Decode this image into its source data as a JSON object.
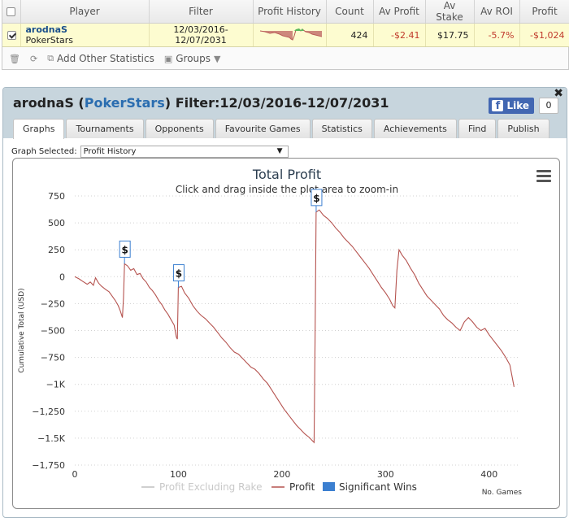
{
  "stats": {
    "headers": {
      "player": "Player",
      "filter": "Filter",
      "profit_history": "Profit History",
      "count": "Count",
      "av_profit": "Av Profit",
      "av_stake": "Av Stake",
      "av_roi": "Av ROI",
      "profit": "Profit"
    },
    "row": {
      "player_name": "arodnaS",
      "player_site": "PokerStars",
      "filter_line1": "12/03/2016-",
      "filter_line2": "12/07/2031",
      "count": "424",
      "av_profit": "-$2.41",
      "av_stake": "$17.75",
      "av_roi": "-5.7%",
      "profit": "-$1,024"
    },
    "toolbar": {
      "add_other": "Add Other Statistics",
      "groups": "Groups"
    }
  },
  "panel": {
    "title_player": "arodnaS",
    "title_site": "PokerStars",
    "title_filter": "Filter:12/03/2016-12/07/2031",
    "fb_like": "Like",
    "fb_count": "0",
    "tabs": [
      {
        "label": "Graphs"
      },
      {
        "label": "Tournaments"
      },
      {
        "label": "Opponents"
      },
      {
        "label": "Favourite Games"
      },
      {
        "label": "Statistics"
      },
      {
        "label": "Achievements"
      },
      {
        "label": "Find"
      },
      {
        "label": "Publish"
      }
    ],
    "graph_selected_label": "Graph Selected:",
    "graph_selected_value": "Profit History"
  },
  "chart_data": {
    "type": "line",
    "title": "Total Profit",
    "subtitle": "Click and drag inside the plot area to zoom-in",
    "ylabel": "Cumulative Total (USD)",
    "xlabel": "No. Games",
    "ylim": [
      -1750,
      750
    ],
    "xlim": [
      0,
      430
    ],
    "x_ticks": [
      0,
      100,
      200,
      300,
      400
    ],
    "x_tick_labels": [
      "0",
      "100",
      "200",
      "300",
      "400"
    ],
    "y_ticks": [
      750,
      500,
      250,
      0,
      -250,
      -500,
      -750,
      -1000,
      -1250,
      -1500,
      -1750
    ],
    "y_tick_labels": [
      "750",
      "500",
      "250",
      "0",
      "−250",
      "−500",
      "−750",
      "−1K",
      "−1,250",
      "−1.5K",
      "−1,750"
    ],
    "legend": [
      "Profit Excluding Rake",
      "Profit",
      "Significant Wins"
    ],
    "legend_placement": "bottom",
    "line_color": "#b5534f",
    "marker_color": "#3b7fd0",
    "series": [
      {
        "name": "Profit",
        "points": [
          [
            0,
            0
          ],
          [
            4,
            -20
          ],
          [
            8,
            -45
          ],
          [
            12,
            -70
          ],
          [
            15,
            -50
          ],
          [
            18,
            -80
          ],
          [
            20,
            -10
          ],
          [
            23,
            -60
          ],
          [
            26,
            -90
          ],
          [
            30,
            -120
          ],
          [
            33,
            -140
          ],
          [
            36,
            -180
          ],
          [
            39,
            -220
          ],
          [
            42,
            -270
          ],
          [
            44,
            -320
          ],
          [
            46,
            -380
          ],
          [
            47,
            -200
          ],
          [
            48,
            120
          ],
          [
            51,
            100
          ],
          [
            54,
            60
          ],
          [
            57,
            75
          ],
          [
            60,
            20
          ],
          [
            63,
            30
          ],
          [
            66,
            -20
          ],
          [
            69,
            -50
          ],
          [
            72,
            -100
          ],
          [
            75,
            -130
          ],
          [
            78,
            -170
          ],
          [
            81,
            -220
          ],
          [
            84,
            -260
          ],
          [
            87,
            -310
          ],
          [
            90,
            -350
          ],
          [
            93,
            -400
          ],
          [
            96,
            -450
          ],
          [
            98,
            -560
          ],
          [
            99,
            -580
          ],
          [
            100,
            -100
          ],
          [
            103,
            -90
          ],
          [
            106,
            -150
          ],
          [
            110,
            -200
          ],
          [
            114,
            -270
          ],
          [
            118,
            -320
          ],
          [
            122,
            -360
          ],
          [
            126,
            -390
          ],
          [
            130,
            -430
          ],
          [
            134,
            -470
          ],
          [
            138,
            -520
          ],
          [
            142,
            -570
          ],
          [
            146,
            -610
          ],
          [
            150,
            -660
          ],
          [
            154,
            -700
          ],
          [
            158,
            -720
          ],
          [
            162,
            -760
          ],
          [
            166,
            -800
          ],
          [
            170,
            -840
          ],
          [
            174,
            -860
          ],
          [
            178,
            -900
          ],
          [
            182,
            -950
          ],
          [
            186,
            -990
          ],
          [
            190,
            -1050
          ],
          [
            194,
            -1110
          ],
          [
            198,
            -1170
          ],
          [
            202,
            -1230
          ],
          [
            206,
            -1280
          ],
          [
            210,
            -1330
          ],
          [
            214,
            -1380
          ],
          [
            218,
            -1420
          ],
          [
            222,
            -1460
          ],
          [
            226,
            -1490
          ],
          [
            230,
            -1530
          ],
          [
            231,
            -1540
          ],
          [
            232,
            -500
          ],
          [
            233,
            600
          ],
          [
            236,
            620
          ],
          [
            240,
            570
          ],
          [
            244,
            540
          ],
          [
            248,
            500
          ],
          [
            252,
            450
          ],
          [
            256,
            410
          ],
          [
            260,
            360
          ],
          [
            264,
            320
          ],
          [
            268,
            280
          ],
          [
            272,
            230
          ],
          [
            276,
            180
          ],
          [
            280,
            130
          ],
          [
            284,
            80
          ],
          [
            288,
            20
          ],
          [
            292,
            -40
          ],
          [
            296,
            -100
          ],
          [
            300,
            -150
          ],
          [
            304,
            -210
          ],
          [
            307,
            -270
          ],
          [
            309,
            -290
          ],
          [
            311,
            60
          ],
          [
            313,
            250
          ],
          [
            316,
            200
          ],
          [
            320,
            150
          ],
          [
            324,
            80
          ],
          [
            328,
            20
          ],
          [
            332,
            -60
          ],
          [
            336,
            -120
          ],
          [
            340,
            -180
          ],
          [
            344,
            -220
          ],
          [
            348,
            -260
          ],
          [
            352,
            -300
          ],
          [
            356,
            -360
          ],
          [
            360,
            -400
          ],
          [
            364,
            -430
          ],
          [
            368,
            -470
          ],
          [
            372,
            -500
          ],
          [
            376,
            -420
          ],
          [
            380,
            -380
          ],
          [
            384,
            -420
          ],
          [
            388,
            -470
          ],
          [
            392,
            -500
          ],
          [
            396,
            -480
          ],
          [
            400,
            -540
          ],
          [
            404,
            -590
          ],
          [
            408,
            -640
          ],
          [
            412,
            -690
          ],
          [
            416,
            -750
          ],
          [
            420,
            -820
          ],
          [
            424,
            -1024
          ]
        ]
      }
    ],
    "significant_wins": [
      [
        48,
        120
      ],
      [
        100,
        -100
      ],
      [
        233,
        600
      ]
    ]
  }
}
